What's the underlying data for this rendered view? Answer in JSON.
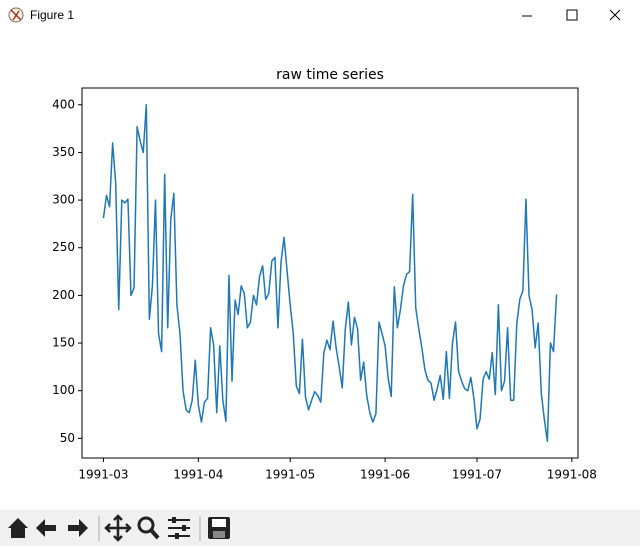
{
  "window": {
    "title": "Figure 1"
  },
  "chart_data": {
    "type": "line",
    "title": "raw time series",
    "color": "#1f77b4",
    "x": [
      "1991-03-01",
      "1991-03-02",
      "1991-03-03",
      "1991-03-04",
      "1991-03-05",
      "1991-03-06",
      "1991-03-07",
      "1991-03-08",
      "1991-03-09",
      "1991-03-10",
      "1991-03-11",
      "1991-03-12",
      "1991-03-13",
      "1991-03-14",
      "1991-03-15",
      "1991-03-16",
      "1991-03-17",
      "1991-03-18",
      "1991-03-19",
      "1991-03-20",
      "1991-03-21",
      "1991-03-22",
      "1991-03-23",
      "1991-03-24",
      "1991-03-25",
      "1991-03-26",
      "1991-03-27",
      "1991-03-28",
      "1991-03-29",
      "1991-03-30",
      "1991-03-31",
      "1991-04-01",
      "1991-04-02",
      "1991-04-03",
      "1991-04-04",
      "1991-04-05",
      "1991-04-06",
      "1991-04-07",
      "1991-04-08",
      "1991-04-09",
      "1991-04-10",
      "1991-04-11",
      "1991-04-12",
      "1991-04-13",
      "1991-04-14",
      "1991-04-15",
      "1991-04-16",
      "1991-04-17",
      "1991-04-18",
      "1991-04-19",
      "1991-04-20",
      "1991-04-21",
      "1991-04-22",
      "1991-04-23",
      "1991-04-24",
      "1991-04-25",
      "1991-04-26",
      "1991-04-27",
      "1991-04-28",
      "1991-04-29",
      "1991-04-30",
      "1991-05-01",
      "1991-05-02",
      "1991-05-03",
      "1991-05-04",
      "1991-05-05",
      "1991-05-06",
      "1991-05-07",
      "1991-05-08",
      "1991-05-09",
      "1991-05-10",
      "1991-05-11",
      "1991-05-12",
      "1991-05-13",
      "1991-05-14",
      "1991-05-15",
      "1991-05-16",
      "1991-05-17",
      "1991-05-18",
      "1991-05-19",
      "1991-05-20",
      "1991-05-21",
      "1991-05-22",
      "1991-05-23",
      "1991-05-24",
      "1991-05-25",
      "1991-05-26",
      "1991-05-27",
      "1991-05-28",
      "1991-05-29",
      "1991-05-30",
      "1991-05-31",
      "1991-06-01",
      "1991-06-02",
      "1991-06-03",
      "1991-06-04",
      "1991-06-05",
      "1991-06-06",
      "1991-06-07",
      "1991-06-08",
      "1991-06-09",
      "1991-06-10",
      "1991-06-11",
      "1991-06-12",
      "1991-06-13",
      "1991-06-14",
      "1991-06-15",
      "1991-06-16",
      "1991-06-17",
      "1991-06-18",
      "1991-06-19",
      "1991-06-20",
      "1991-06-21",
      "1991-06-22",
      "1991-06-23",
      "1991-06-24",
      "1991-06-25",
      "1991-06-26",
      "1991-06-27",
      "1991-06-28",
      "1991-06-29",
      "1991-06-30",
      "1991-07-01",
      "1991-07-02",
      "1991-07-03",
      "1991-07-04",
      "1991-07-05",
      "1991-07-06",
      "1991-07-07",
      "1991-07-08",
      "1991-07-09",
      "1991-07-10",
      "1991-07-11",
      "1991-07-12",
      "1991-07-13",
      "1991-07-14",
      "1991-07-15",
      "1991-07-16",
      "1991-07-17",
      "1991-07-18",
      "1991-07-19",
      "1991-07-20",
      "1991-07-21",
      "1991-07-22",
      "1991-07-23",
      "1991-07-24",
      "1991-07-25",
      "1991-07-26",
      "1991-07-27"
    ],
    "values": [
      281,
      305,
      293,
      360,
      318,
      185,
      300,
      297,
      301,
      200,
      208,
      377,
      362,
      350,
      400,
      175,
      210,
      300,
      160,
      141,
      327,
      166,
      280,
      307,
      190,
      160,
      100,
      80,
      77,
      90,
      132,
      85,
      67,
      88,
      92,
      166,
      148,
      77,
      147,
      90,
      68,
      221,
      110,
      195,
      180,
      210,
      202,
      166,
      172,
      200,
      190,
      220,
      231,
      196,
      202,
      236,
      240,
      166,
      235,
      261,
      225,
      190,
      160,
      105,
      97,
      154,
      93,
      80,
      90,
      99,
      95,
      88,
      140,
      153,
      143,
      173,
      145,
      125,
      103,
      165,
      193,
      148,
      177,
      165,
      111,
      130,
      95,
      77,
      67,
      76,
      172,
      160,
      147,
      113,
      94,
      209,
      166,
      185,
      210,
      222,
      225,
      306,
      187,
      165,
      145,
      122,
      111,
      108,
      90,
      102,
      116,
      91,
      141,
      92,
      150,
      172,
      120,
      110,
      102,
      100,
      114,
      92,
      60,
      70,
      112,
      120,
      112,
      140,
      96,
      190,
      100,
      110,
      166,
      90,
      90,
      170,
      196,
      205,
      301,
      200,
      185,
      145,
      171,
      98,
      70,
      47,
      150,
      141,
      201
    ],
    "xlim": [
      "1991-02-22",
      "1991-08-03"
    ],
    "xticks": [
      {
        "value": "1991-03-01",
        "label": "1991-03"
      },
      {
        "value": "1991-04-01",
        "label": "1991-04"
      },
      {
        "value": "1991-05-01",
        "label": "1991-05"
      },
      {
        "value": "1991-06-01",
        "label": "1991-06"
      },
      {
        "value": "1991-07-01",
        "label": "1991-07"
      },
      {
        "value": "1991-08-01",
        "label": "1991-08"
      }
    ],
    "ylim": [
      29.4,
      417.6
    ],
    "yticks": [
      50,
      100,
      150,
      200,
      250,
      300,
      350,
      400
    ],
    "grid": false
  }
}
